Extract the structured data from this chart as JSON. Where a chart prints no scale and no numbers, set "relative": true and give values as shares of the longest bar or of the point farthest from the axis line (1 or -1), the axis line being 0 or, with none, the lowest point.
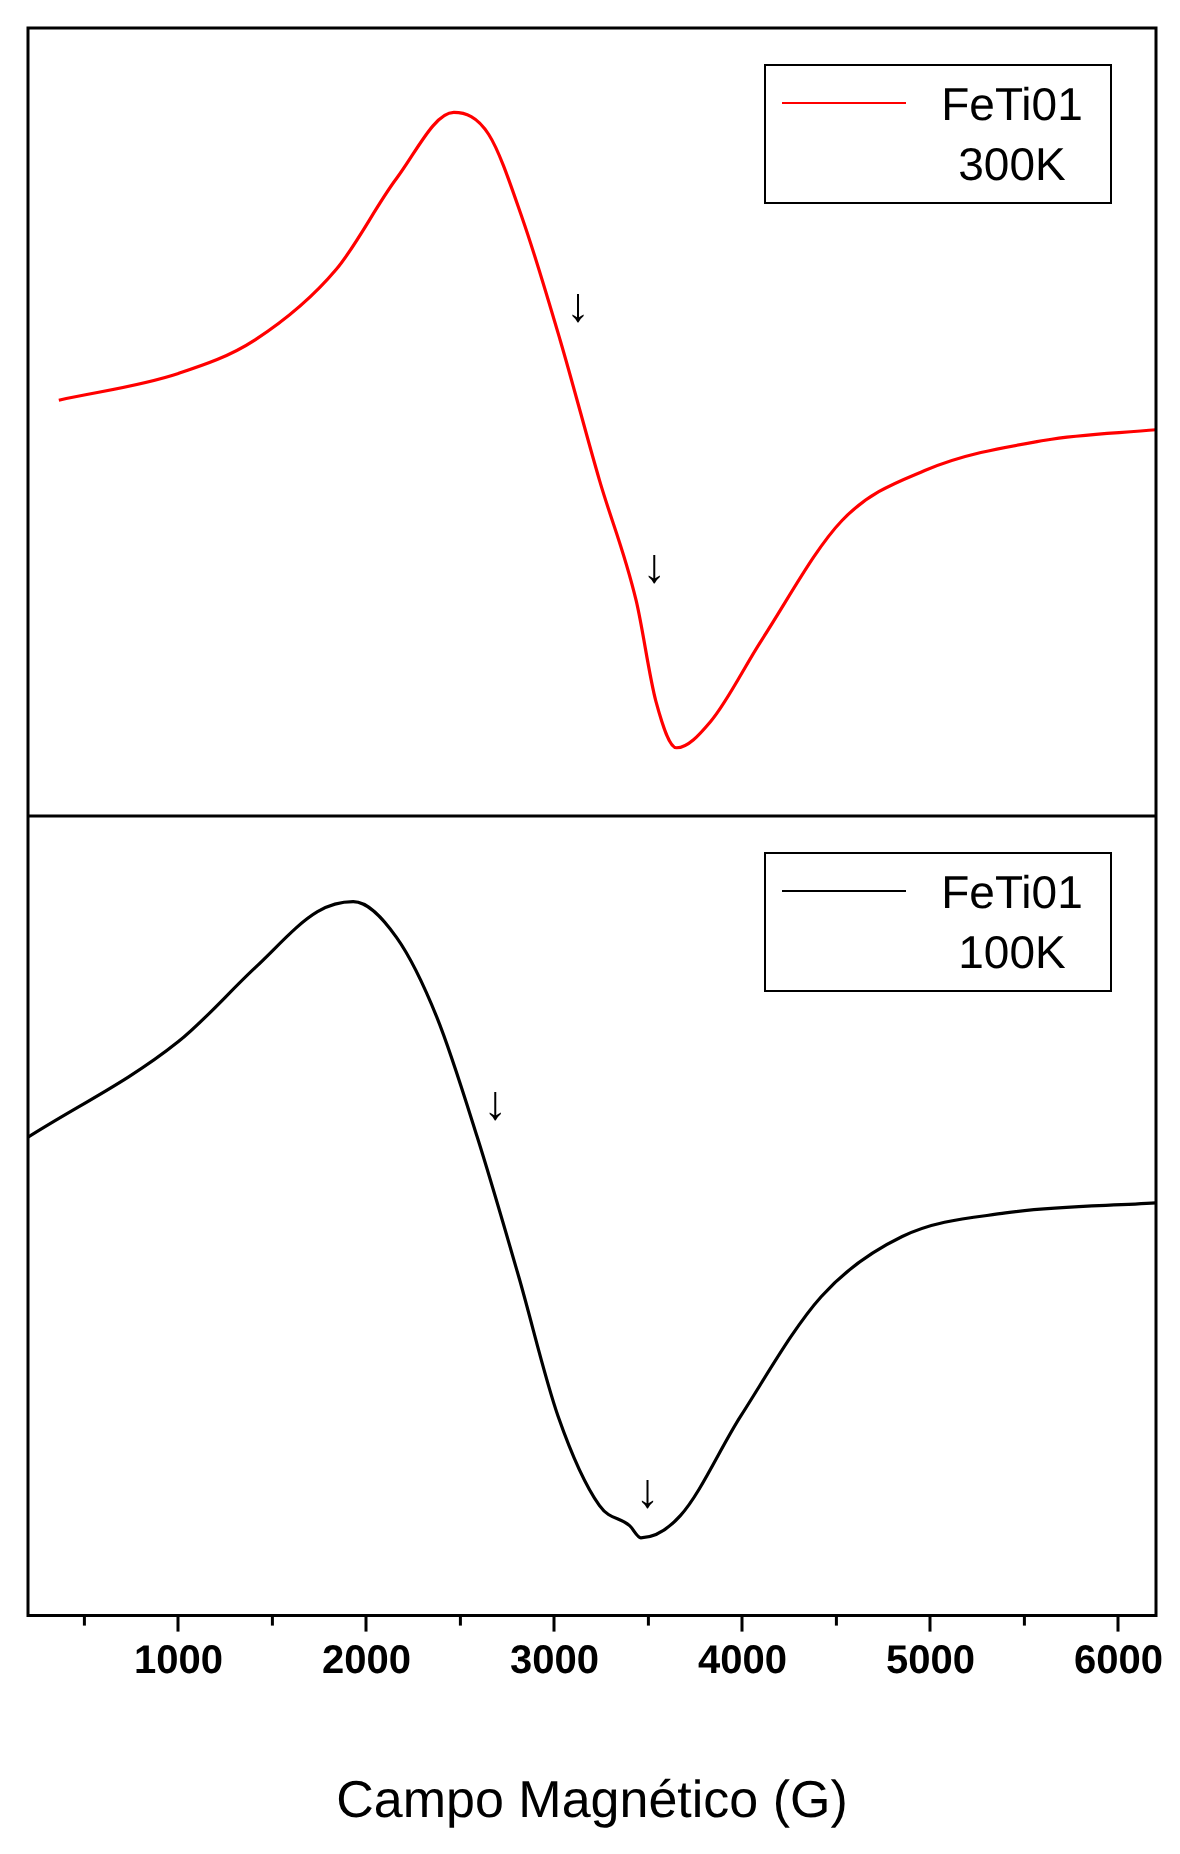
{
  "chart_data": [
    {
      "type": "line",
      "relative": true,
      "tick_labels": false,
      "legend": "top right",
      "xlim": [
        200,
        6200
      ],
      "x": [
        364,
        1000,
        1410,
        1840,
        2160,
        2465,
        2650,
        2830,
        3030,
        3240,
        3435,
        3540,
        3650,
        3830,
        4100,
        4530,
        4970,
        5610,
        6200
      ],
      "series": [
        {
          "name": "FeTi01 300K",
          "color": "#ff0000",
          "values": [
            0.591,
            0.629,
            0.677,
            0.777,
            0.906,
            1,
            0.969,
            0.849,
            0.677,
            0.477,
            0.306,
            0.163,
            0.097,
            0.134,
            0.249,
            0.42,
            0.491,
            0.534,
            0.549
          ]
        }
      ],
      "annotations": [
        {
          "text": "↓",
          "x": 3030,
          "y": 0.677
        },
        {
          "text": "↓",
          "x": 3435,
          "y": 0.306
        }
      ]
    },
    {
      "type": "line",
      "relative": true,
      "tick_labels": "x",
      "legend": "top right",
      "xlabel": "Campo Magnético (G)",
      "xlim": [
        200,
        6200
      ],
      "xticks": [
        1000,
        2000,
        3000,
        4000,
        5000,
        6000
      ],
      "x": [
        200,
        1000,
        1410,
        1740,
        1930,
        2160,
        2375,
        2590,
        2810,
        3020,
        3240,
        3400,
        3460,
        3670,
        3990,
        4420,
        4850,
        5400,
        6200
      ],
      "series": [
        {
          "name": "FeTi01 100K",
          "color": "#000000",
          "values": [
            0.67,
            0.804,
            0.908,
            0.986,
            1,
            0.95,
            0.838,
            0.67,
            0.475,
            0.279,
            0.154,
            0.126,
            0.109,
            0.14,
            0.279,
            0.447,
            0.531,
            0.564,
            0.578
          ]
        }
      ],
      "annotations": [
        {
          "text": "↓",
          "x": 2590,
          "y": 0.67
        },
        {
          "text": "↓",
          "x": 3400,
          "y": 0.126
        }
      ]
    }
  ]
}
